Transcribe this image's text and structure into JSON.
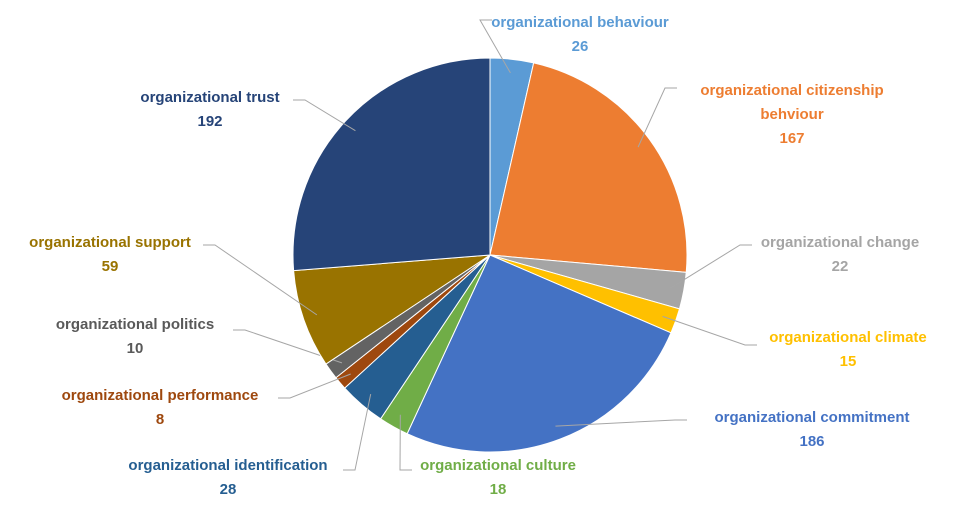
{
  "chart_data": {
    "type": "pie",
    "categories": [
      "organizational behaviour",
      "organizational citizenship behviour",
      "organizational change",
      "organizational climate",
      "organizational commitment",
      "organizational culture",
      "organizational identification",
      "organizational performance",
      "organizational politics",
      "organizational support",
      "organizational trust"
    ],
    "values": [
      26,
      167,
      22,
      15,
      186,
      18,
      28,
      8,
      10,
      59,
      192
    ],
    "colors": [
      "#5b9bd5",
      "#ed7d31",
      "#a5a5a5",
      "#ffc000",
      "#4472c4",
      "#70ad47",
      "#255e91",
      "#9e480e",
      "#636363",
      "#997300",
      "#264478"
    ]
  }
}
